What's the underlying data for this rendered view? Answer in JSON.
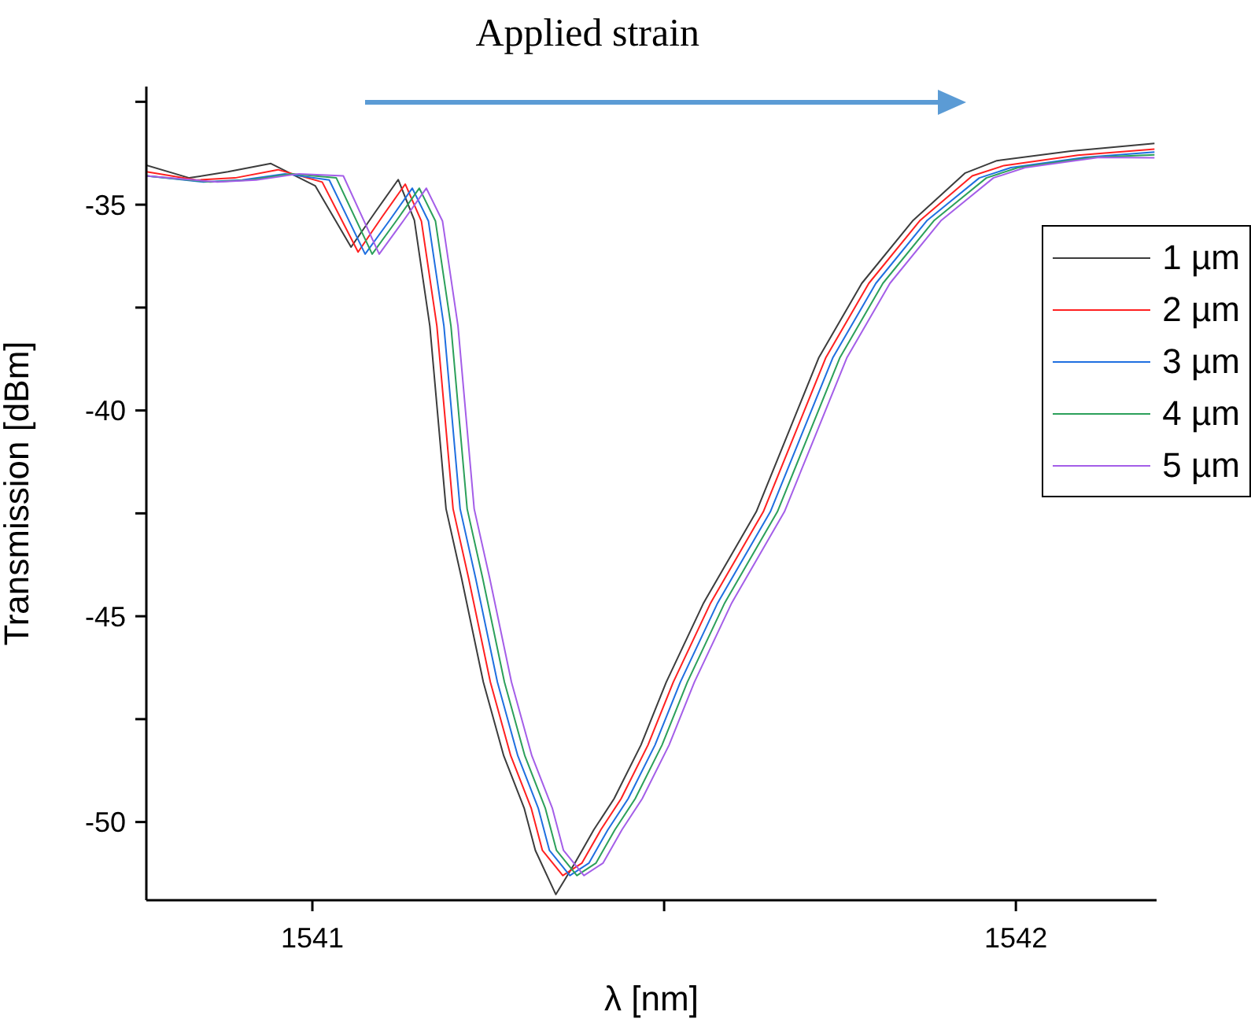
{
  "chart_data": {
    "type": "line",
    "annotations": [
      "Applied strain"
    ],
    "xlabel": "λ [nm]",
    "ylabel": "Transmission [dBm]",
    "xlim": [
      1540.764,
      1542.2
    ],
    "xticks": [
      1541,
      {
        "value": 1541.5,
        "label": null
      },
      1542
    ],
    "ylim": [
      -51.9,
      -32.13
    ],
    "yticks": [
      {
        "value": -32.5,
        "label": null
      },
      -35,
      {
        "value": -37.5,
        "label": null
      },
      -40,
      {
        "value": -42.5,
        "label": null
      },
      -45,
      {
        "value": -47.5,
        "label": null
      },
      -50
    ],
    "legend": "right",
    "series": [
      {
        "name": "1 µm",
        "color": "#3c3c3c",
        "x": [
          1540.764,
          1540.825,
          1540.88,
          1540.941,
          1541.004,
          1541.055,
          1541.089,
          1541.122,
          1541.145,
          1541.167,
          1541.19,
          1541.212,
          1541.243,
          1541.272,
          1541.301,
          1541.317,
          1541.346,
          1541.373,
          1541.4,
          1541.429,
          1541.467,
          1541.503,
          1541.556,
          1541.631,
          1541.669,
          1541.72,
          1541.781,
          1541.854,
          1541.928,
          1541.973,
          1542.078,
          1542.197
        ],
        "values": [
          -34.04,
          -34.35,
          -34.2,
          -34.0,
          -34.54,
          -36.03,
          -35.19,
          -34.39,
          -35.38,
          -37.95,
          -42.39,
          -44.07,
          -46.6,
          -48.39,
          -49.66,
          -50.69,
          -51.76,
          -51.0,
          -50.19,
          -49.43,
          -48.13,
          -46.6,
          -44.68,
          -42.46,
          -40.86,
          -38.71,
          -36.91,
          -35.38,
          -34.23,
          -33.93,
          -33.7,
          -33.51
        ]
      },
      {
        "name": "2 µm",
        "color": "#ff2020",
        "x": [
          1540.764,
          1540.835,
          1540.89,
          1540.951,
          1541.014,
          1541.065,
          1541.099,
          1541.132,
          1541.155,
          1541.177,
          1541.2,
          1541.222,
          1541.253,
          1541.282,
          1541.311,
          1541.327,
          1541.356,
          1541.383,
          1541.41,
          1541.439,
          1541.477,
          1541.513,
          1541.566,
          1541.641,
          1541.679,
          1541.73,
          1541.791,
          1541.864,
          1541.938,
          1541.983,
          1542.088,
          1542.197
        ],
        "values": [
          -34.2,
          -34.4,
          -34.35,
          -34.15,
          -34.45,
          -36.15,
          -35.3,
          -34.5,
          -35.4,
          -37.95,
          -42.39,
          -44.07,
          -46.6,
          -48.39,
          -49.66,
          -50.69,
          -51.3,
          -51.0,
          -50.19,
          -49.43,
          -48.13,
          -46.6,
          -44.68,
          -42.46,
          -40.86,
          -38.71,
          -36.91,
          -35.38,
          -34.3,
          -34.05,
          -33.8,
          -33.65
        ]
      },
      {
        "name": "3 µm",
        "color": "#1f6fe0",
        "x": [
          1540.764,
          1540.845,
          1540.9,
          1540.961,
          1541.024,
          1541.075,
          1541.109,
          1541.142,
          1541.165,
          1541.187,
          1541.21,
          1541.232,
          1541.263,
          1541.292,
          1541.321,
          1541.337,
          1541.366,
          1541.393,
          1541.42,
          1541.449,
          1541.487,
          1541.523,
          1541.576,
          1541.651,
          1541.689,
          1541.74,
          1541.801,
          1541.874,
          1541.948,
          1541.993,
          1542.098,
          1542.197
        ],
        "values": [
          -34.3,
          -34.45,
          -34.4,
          -34.25,
          -34.4,
          -36.2,
          -35.4,
          -34.6,
          -35.4,
          -37.95,
          -42.39,
          -44.07,
          -46.6,
          -48.39,
          -49.66,
          -50.69,
          -51.3,
          -51.0,
          -50.19,
          -49.43,
          -48.13,
          -46.6,
          -44.68,
          -42.46,
          -40.86,
          -38.71,
          -36.91,
          -35.38,
          -34.35,
          -34.1,
          -33.85,
          -33.72
        ]
      },
      {
        "name": "4 µm",
        "color": "#2ca05a",
        "x": [
          1540.764,
          1540.855,
          1540.91,
          1540.971,
          1541.034,
          1541.085,
          1541.119,
          1541.152,
          1541.175,
          1541.197,
          1541.22,
          1541.242,
          1541.273,
          1541.302,
          1541.331,
          1541.347,
          1541.376,
          1541.403,
          1541.43,
          1541.459,
          1541.497,
          1541.533,
          1541.586,
          1541.661,
          1541.699,
          1541.75,
          1541.811,
          1541.884,
          1541.958,
          1542.003,
          1542.108,
          1542.197
        ],
        "values": [
          -34.3,
          -34.45,
          -34.4,
          -34.25,
          -34.35,
          -36.2,
          -35.4,
          -34.6,
          -35.4,
          -37.95,
          -42.39,
          -44.07,
          -46.6,
          -48.39,
          -49.66,
          -50.69,
          -51.3,
          -51.0,
          -50.19,
          -49.43,
          -48.13,
          -46.6,
          -44.68,
          -42.46,
          -40.86,
          -38.71,
          -36.91,
          -35.38,
          -34.35,
          -34.1,
          -33.85,
          -33.79
        ]
      },
      {
        "name": "5 µm",
        "color": "#a45ee8",
        "x": [
          1540.764,
          1540.865,
          1540.92,
          1540.981,
          1541.044,
          1541.095,
          1541.129,
          1541.162,
          1541.185,
          1541.207,
          1541.23,
          1541.252,
          1541.283,
          1541.312,
          1541.341,
          1541.357,
          1541.386,
          1541.413,
          1541.44,
          1541.469,
          1541.507,
          1541.543,
          1541.596,
          1541.671,
          1541.709,
          1541.76,
          1541.821,
          1541.894,
          1541.968,
          1542.013,
          1542.118,
          1542.197
        ],
        "values": [
          -34.3,
          -34.45,
          -34.4,
          -34.25,
          -34.3,
          -36.2,
          -35.4,
          -34.6,
          -35.4,
          -37.95,
          -42.39,
          -44.07,
          -46.6,
          -48.39,
          -49.66,
          -50.69,
          -51.3,
          -51.0,
          -50.19,
          -49.43,
          -48.13,
          -46.6,
          -44.68,
          -42.46,
          -40.86,
          -38.71,
          -36.91,
          -35.38,
          -34.35,
          -34.1,
          -33.85,
          -33.86
        ]
      }
    ]
  }
}
